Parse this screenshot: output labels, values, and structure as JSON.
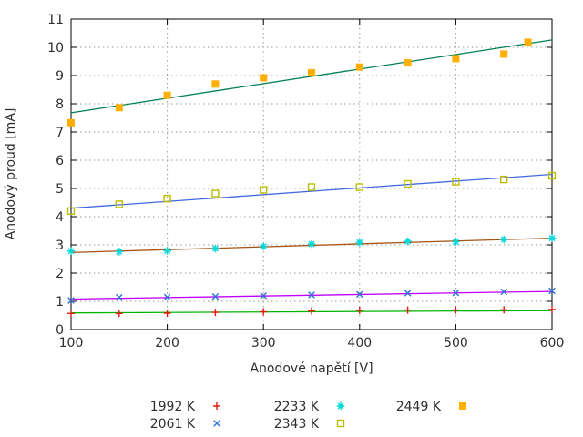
{
  "chart_data": {
    "type": "scatter",
    "title": "",
    "xlabel": "Anodové napětí [V]",
    "ylabel": "Anodový proud [mA]",
    "xlim": [
      100,
      600
    ],
    "ylim": [
      0,
      11
    ],
    "xticks": [
      100,
      200,
      300,
      400,
      500,
      600
    ],
    "yticks": [
      0,
      1,
      2,
      3,
      4,
      5,
      6,
      7,
      8,
      9,
      10,
      11
    ],
    "grid": {
      "on": true,
      "style": "dotted",
      "color": "#9a9a9a",
      "vertical_at": [
        200,
        300,
        400,
        500
      ],
      "horizontal_at": [
        1,
        2,
        3,
        4,
        5,
        6,
        7,
        8,
        9,
        10
      ]
    },
    "border_color": "#000000",
    "text_color": "#2e2e2e",
    "legend_position": "bottom-center",
    "series": [
      {
        "name": "1992 K",
        "marker": "plus",
        "marker_color": "#e41a0c",
        "line_color": "#00b400",
        "x": [
          100,
          150,
          200,
          250,
          300,
          350,
          400,
          450,
          500,
          550,
          600
        ],
        "y": [
          0.57,
          0.57,
          0.58,
          0.61,
          0.63,
          0.66,
          0.68,
          0.69,
          0.69,
          0.7,
          0.71
        ],
        "fit": {
          "x": [
            100,
            600
          ],
          "y": [
            0.59,
            0.67
          ]
        }
      },
      {
        "name": "2061 K",
        "marker": "cross",
        "marker_color": "#2a72dd",
        "line_color": "#c000ff",
        "x": [
          100,
          150,
          200,
          250,
          300,
          350,
          400,
          450,
          500,
          550,
          600
        ],
        "y": [
          1.03,
          1.14,
          1.15,
          1.17,
          1.2,
          1.23,
          1.25,
          1.29,
          1.3,
          1.34,
          1.37
        ],
        "fit": {
          "x": [
            100,
            600
          ],
          "y": [
            1.08,
            1.35
          ]
        }
      },
      {
        "name": "2233 K",
        "marker": "asterisk",
        "marker_color": "#00d8d8",
        "line_color": "#a85413",
        "x": [
          100,
          150,
          200,
          250,
          300,
          350,
          400,
          450,
          500,
          550,
          600
        ],
        "y": [
          2.78,
          2.76,
          2.79,
          2.87,
          2.95,
          3.03,
          3.09,
          3.13,
          3.11,
          3.19,
          3.24
        ],
        "fit": {
          "x": [
            100,
            600
          ],
          "y": [
            2.73,
            3.24
          ]
        }
      },
      {
        "name": "2343 K",
        "marker": "open-square",
        "marker_color": "#bdbd00",
        "line_color": "#4169e1",
        "x": [
          100,
          150,
          200,
          250,
          300,
          350,
          400,
          450,
          500,
          550,
          600
        ],
        "y": [
          4.2,
          4.44,
          4.64,
          4.82,
          4.95,
          5.05,
          5.05,
          5.16,
          5.24,
          5.32,
          5.45
        ],
        "fit": {
          "x": [
            100,
            600
          ],
          "y": [
            4.3,
            5.5
          ]
        }
      },
      {
        "name": "2449 K",
        "marker": "filled-square",
        "marker_color": "#ffaf00",
        "line_color": "#008050",
        "x": [
          100,
          150,
          200,
          250,
          300,
          350,
          400,
          450,
          500,
          550,
          575
        ],
        "y": [
          7.33,
          7.86,
          8.3,
          8.7,
          8.92,
          9.1,
          9.3,
          9.45,
          9.6,
          9.76,
          10.18
        ],
        "fit": {
          "x": [
            100,
            600
          ],
          "y": [
            7.68,
            10.26
          ]
        }
      }
    ]
  }
}
